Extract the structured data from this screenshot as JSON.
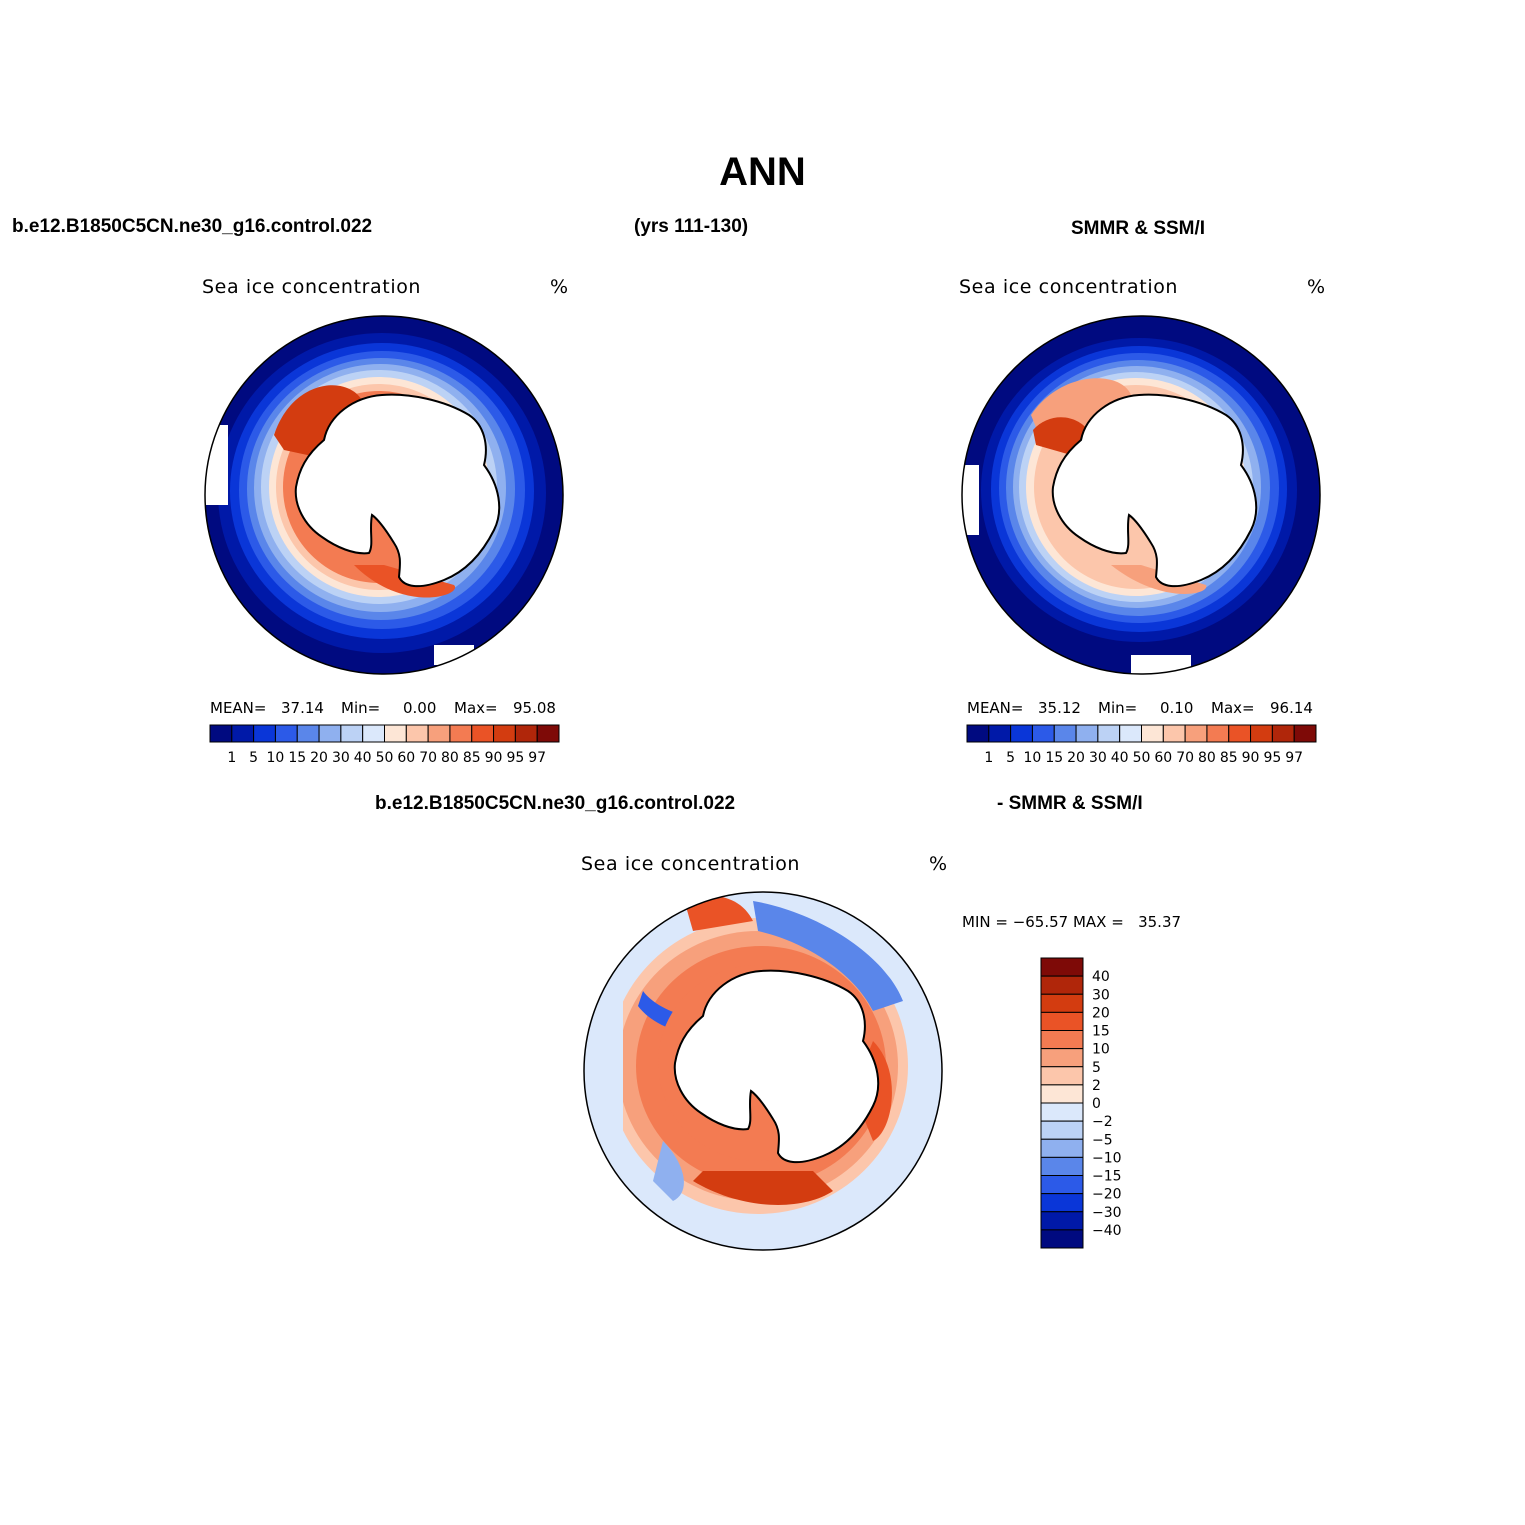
{
  "figure": {
    "title": "ANN",
    "left_header": "b.e12.B1850C5CN.ne30_g16.control.022",
    "center_header": "(yrs 111-130)",
    "right_header": "SMMR & SSM/I",
    "diff_header_left": "b.e12.B1850C5CN.ne30_g16.control.022",
    "diff_header_right": "- SMMR & SSM/I"
  },
  "colors": {
    "ice_scale": [
      "#000a80",
      "#0019a8",
      "#0a36d8",
      "#2c5ae8",
      "#5a86ea",
      "#8fb0ef",
      "#bcd2f5",
      "#dbe8fb",
      "#fde6d6",
      "#fcc6ab",
      "#f7a07c",
      "#f37b52",
      "#ea5326",
      "#d33c10",
      "#b0260a",
      "#7e0a07"
    ],
    "diff_scale": [
      "#000a80",
      "#0019a8",
      "#0a36d8",
      "#2c5ae8",
      "#5a86ea",
      "#8fb0ef",
      "#bcd2f5",
      "#dbe8fb",
      "#fde6d6",
      "#fcc6ab",
      "#f7a07c",
      "#f37b52",
      "#ea5326",
      "#d33c10",
      "#b0260a",
      "#7e0a07"
    ],
    "land": "#ffffff",
    "coastline": "#000000"
  },
  "chart_data": [
    {
      "type": "heatmap",
      "projection": "south-polar-stereographic",
      "title": "Sea ice concentration",
      "units": "%",
      "stats": {
        "mean_label": "MEAN=",
        "mean": "37.14",
        "min_label": "Min=",
        "min": "0.00",
        "max_label": "Max=",
        "max": "95.08"
      },
      "levels": [
        "1",
        "5",
        "10",
        "15",
        "20",
        "30",
        "40",
        "50",
        "60",
        "70",
        "80",
        "85",
        "90",
        "95",
        "97"
      ]
    },
    {
      "type": "heatmap",
      "projection": "south-polar-stereographic",
      "title": "Sea ice concentration",
      "units": "%",
      "stats": {
        "mean_label": "MEAN=",
        "mean": "35.12",
        "min_label": "Min=",
        "min": "0.10",
        "max_label": "Max=",
        "max": "96.14"
      },
      "levels": [
        "1",
        "5",
        "10",
        "15",
        "20",
        "30",
        "40",
        "50",
        "60",
        "70",
        "80",
        "85",
        "90",
        "95",
        "97"
      ]
    },
    {
      "type": "heatmap",
      "projection": "south-polar-stereographic",
      "title": "Sea ice concentration",
      "units": "%",
      "stats": {
        "text": "MIN = −65.57 MAX =   35.37"
      },
      "levels": [
        "40",
        "30",
        "20",
        "15",
        "10",
        "5",
        "2",
        "0",
        "−2",
        "−5",
        "−10",
        "−15",
        "−20",
        "−30",
        "−40"
      ]
    }
  ]
}
